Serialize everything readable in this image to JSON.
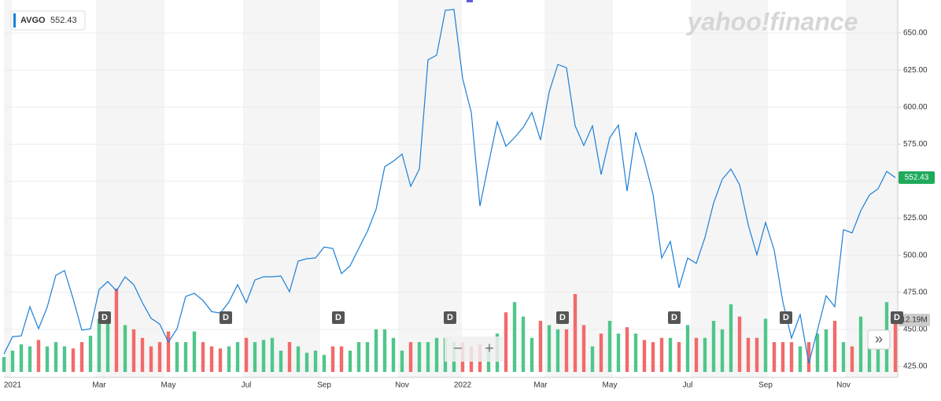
{
  "chart_data": {
    "type": "line",
    "logo": "yahoo!finance",
    "ticker": "AVGO",
    "categories": [
      null,
      "2021",
      null,
      null,
      null,
      null,
      null,
      null,
      null,
      null,
      null,
      "Mar",
      null,
      null,
      null,
      null,
      null,
      null,
      null,
      "May",
      null,
      null,
      null,
      null,
      null,
      null,
      null,
      null,
      "Jul",
      null,
      null,
      null,
      null,
      null,
      null,
      null,
      null,
      "Sep",
      null,
      null,
      null,
      null,
      null,
      null,
      null,
      null,
      "Nov",
      null,
      null,
      null,
      null,
      null,
      null,
      "2022",
      null,
      null,
      null,
      null,
      null,
      null,
      null,
      null,
      "Mar",
      null,
      null,
      null,
      null,
      null,
      null,
      null,
      "May",
      null,
      null,
      null,
      null,
      null,
      null,
      null,
      null,
      "Jul",
      null,
      null,
      null,
      null,
      null,
      null,
      null,
      null,
      "Sep",
      null,
      null,
      null,
      null,
      null,
      null,
      null,
      null,
      "Nov",
      null,
      null,
      null,
      null,
      null,
      null
    ],
    "series": [
      {
        "name": "AVGO",
        "color": "#1a7fd8",
        "values": [
          433.4,
          445.1,
          445.6,
          465.3,
          450.4,
          465,
          486.5,
          489.7,
          470.6,
          449.4,
          450.4,
          476.9,
          482.3,
          476,
          485.5,
          480.2,
          468,
          457.5,
          453.6,
          441.4,
          450.4,
          472.2,
          474.3,
          469.5,
          462,
          461,
          468.5,
          480.2,
          468,
          483.3,
          485.5,
          485.5,
          486,
          475.4,
          496.1,
          497.7,
          498.2,
          505.6,
          504.6,
          487.6,
          492.9,
          504.6,
          516.2,
          531.1,
          559.8,
          563.5,
          568.3,
          546.5,
          558.2,
          631.9,
          635.1,
          665.4,
          665.9,
          619.2,
          596.4,
          533.2,
          561.9,
          590,
          573.6,
          579.4,
          586.3,
          596.4,
          577.8,
          610.2,
          628.8,
          626.6,
          587.4,
          574.1,
          587.4,
          554.5,
          579.4,
          587.9,
          543.3,
          583.1,
          564,
          541.2,
          498.2,
          509.3,
          478,
          498.2,
          494.5,
          512,
          535.3,
          551.3,
          558.2,
          547.6,
          520.5,
          500.3,
          522.1,
          503.5,
          468.5,
          444.1,
          460,
          427.1,
          449.4,
          472.7,
          465.3,
          517.3,
          515.1,
          530,
          540.7,
          544.9,
          556.6,
          552.43
        ]
      },
      {
        "name": "Volume",
        "axis": "y2",
        "up_color": "#4fc68a",
        "down_color": "#f26a6a",
        "values": [
          3.5,
          5,
          6.5,
          6,
          7.5,
          6,
          7,
          6,
          5.5,
          7,
          8.5,
          12.5,
          13,
          19.6,
          11,
          10,
          8,
          6,
          7,
          9.5,
          7,
          7,
          9.5,
          7,
          6,
          5.5,
          6,
          7,
          8,
          7,
          7.5,
          8,
          5,
          7,
          6,
          4.5,
          5,
          4,
          6,
          6,
          5,
          7,
          7,
          10,
          10,
          8,
          5,
          7,
          7,
          7,
          8,
          8,
          7,
          7,
          6,
          6.5,
          6,
          9,
          14,
          16.4,
          13,
          8,
          12,
          11,
          10,
          10,
          18.3,
          11,
          6,
          9,
          12,
          9,
          10.5,
          9,
          7.5,
          7,
          8,
          8,
          7,
          11,
          8,
          8,
          12,
          10,
          15.9,
          13,
          8,
          8,
          12.5,
          7,
          7,
          7,
          6,
          7,
          9,
          10,
          12,
          7,
          6,
          13,
          9,
          8.5,
          16.4,
          12.19
        ]
      }
    ],
    "volume_tag": "12.19M",
    "ylim": [
      417.57,
      672.29
    ],
    "yticks": [
      {
        "value": 425,
        "label": "425.00"
      },
      {
        "value": 450,
        "label": "450.00"
      },
      {
        "value": 475,
        "label": "475.00"
      },
      {
        "value": 500,
        "label": "500.00"
      },
      {
        "value": 525,
        "label": "525.00"
      },
      {
        "value": 550,
        "label": "550.00"
      },
      {
        "value": 575,
        "label": "575.00"
      },
      {
        "value": 600,
        "label": "600.00"
      },
      {
        "value": 625,
        "label": "625.00"
      },
      {
        "value": 650,
        "label": "650.00"
      }
    ],
    "y2lim": [
      0,
      87.4
    ],
    "grid": true,
    "events": [
      "D",
      "D",
      "D",
      "D",
      "D",
      "D",
      "D",
      "D"
    ]
  },
  "controls": {
    "zoom_out": "−",
    "zoom_in": "+",
    "scroll": "»"
  }
}
